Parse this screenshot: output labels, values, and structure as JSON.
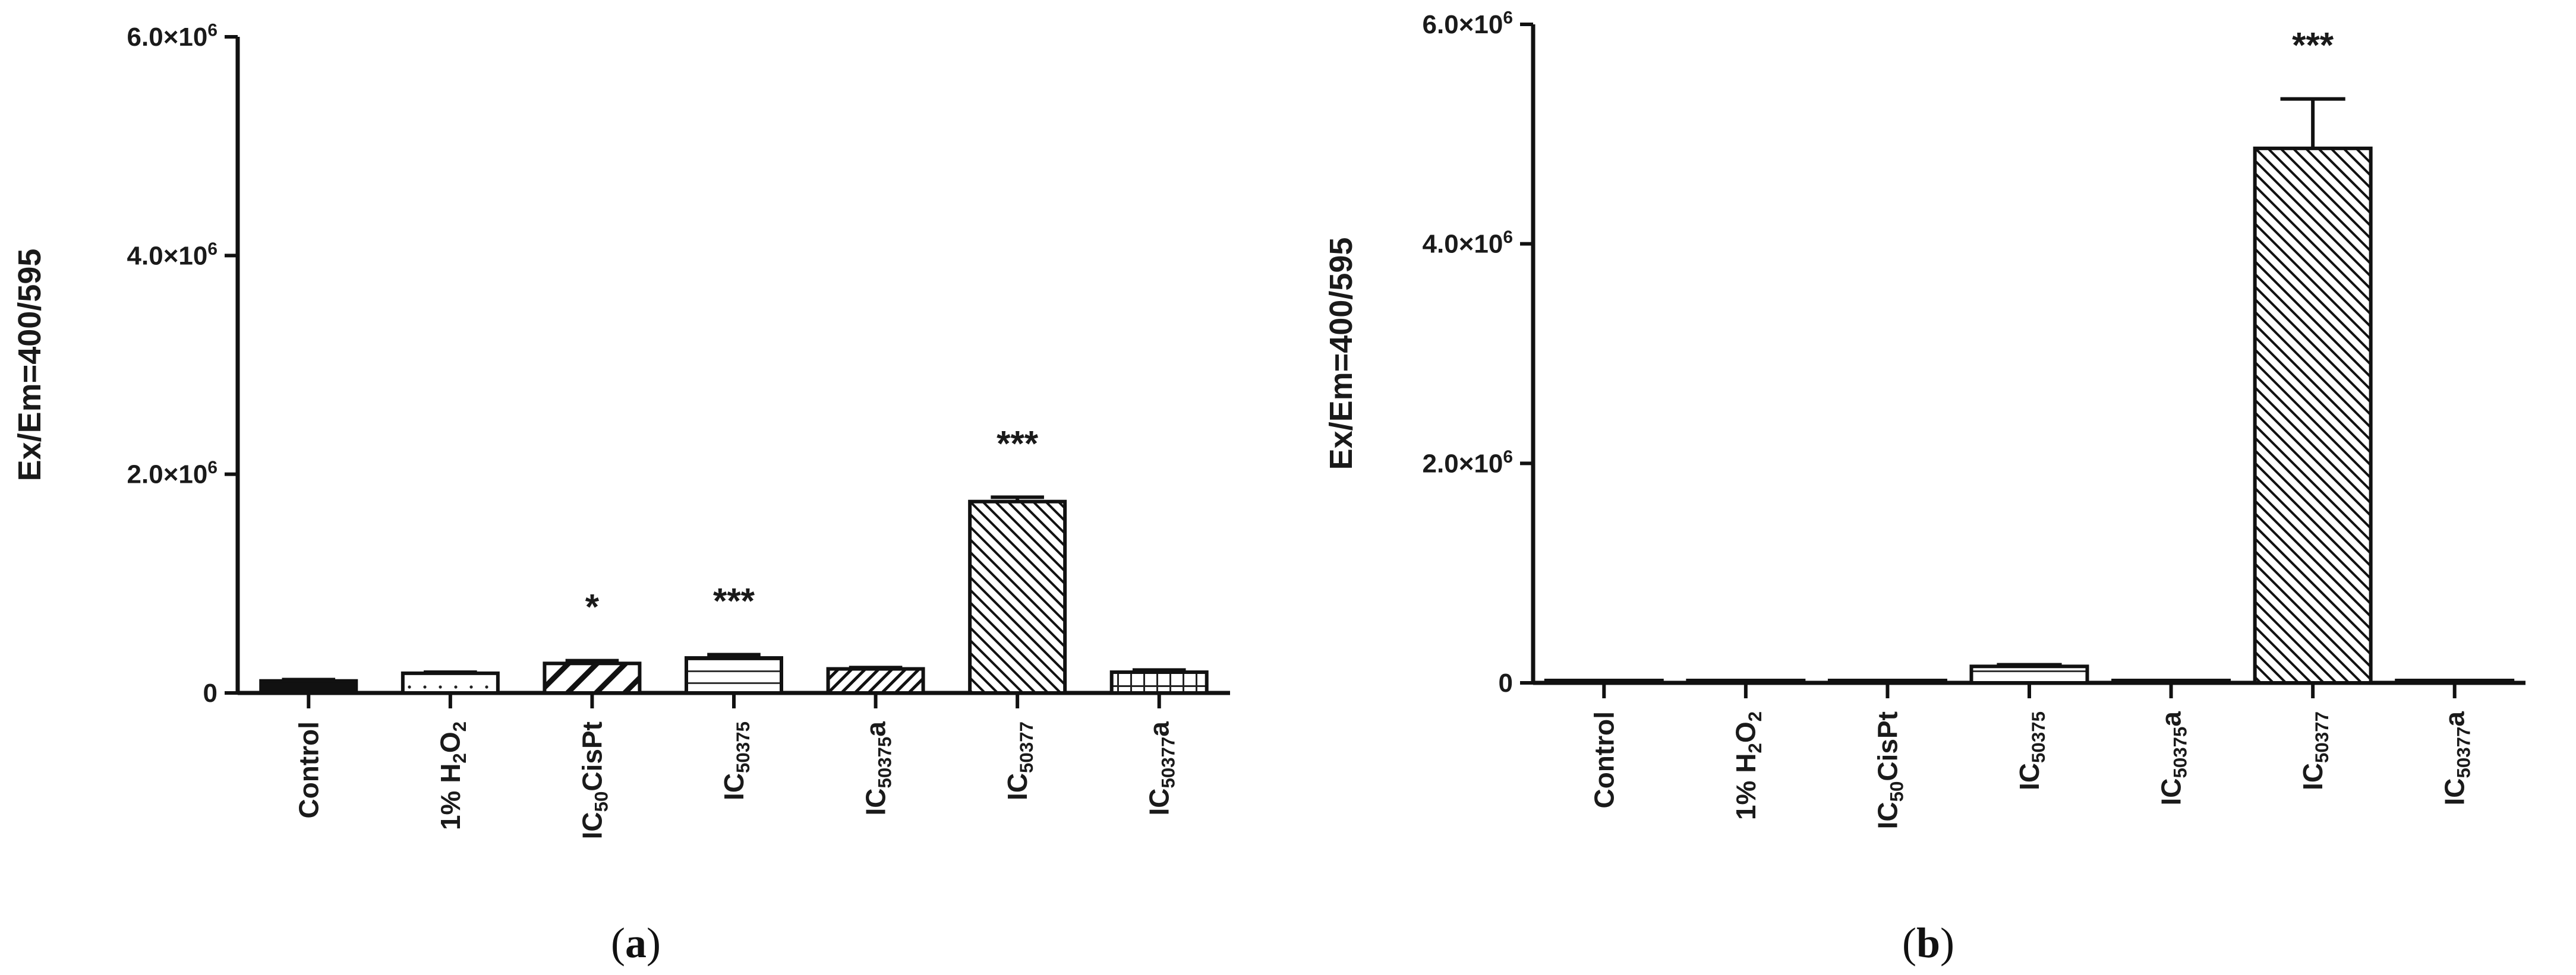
{
  "chart_data": [
    {
      "panel_label": "(a)",
      "type": "bar",
      "ylabel": "Ex/Em=400/595",
      "ylim": [
        0,
        6000000
      ],
      "yticks": [
        0,
        2000000,
        4000000,
        6000000
      ],
      "ytick_labels": [
        "0",
        "2.0×10^6",
        "4.0×10^6",
        "6.0×10^6"
      ],
      "categories": [
        "Control",
        "1% H_2O_2",
        "IC_50CisPt",
        "IC_50375",
        "IC_50375a",
        "IC_50377",
        "IC_50377a"
      ],
      "values": [
        110000,
        180000,
        270000,
        320000,
        220000,
        1750000,
        190000
      ],
      "errors": [
        12000,
        10000,
        25000,
        30000,
        12000,
        40000,
        20000
      ],
      "patterns": [
        "solid",
        "dots",
        "diag-wide",
        "hlines",
        "diag-narrow",
        "diag-back",
        "grid"
      ],
      "significance": [
        "",
        "",
        "*",
        "***",
        "",
        "***",
        ""
      ],
      "grid": false,
      "legend": false
    },
    {
      "panel_label": "(b)",
      "type": "bar",
      "ylabel": "Ex/Em=400/595",
      "ylim": [
        0,
        6000000
      ],
      "yticks": [
        0,
        2000000,
        4000000,
        6000000
      ],
      "ytick_labels": [
        "0",
        "2.0×10^6",
        "4.0×10^6",
        "6.0×10^6"
      ],
      "categories": [
        "Control",
        "1% H_2O_2",
        "IC_50CisPt",
        "IC_50375",
        "IC_50375a",
        "IC_50377",
        "IC_50377a"
      ],
      "values": [
        5000,
        20000,
        8000,
        150000,
        6000,
        4870000,
        6000
      ],
      "errors": [
        0,
        0,
        0,
        15000,
        0,
        450000,
        0
      ],
      "patterns": [
        "solid",
        "dots",
        "diag-wide",
        "hlines",
        "diag-narrow",
        "diag-back",
        "grid"
      ],
      "significance": [
        "",
        "",
        "",
        "",
        "",
        "***",
        ""
      ],
      "grid": false,
      "legend": false
    }
  ]
}
